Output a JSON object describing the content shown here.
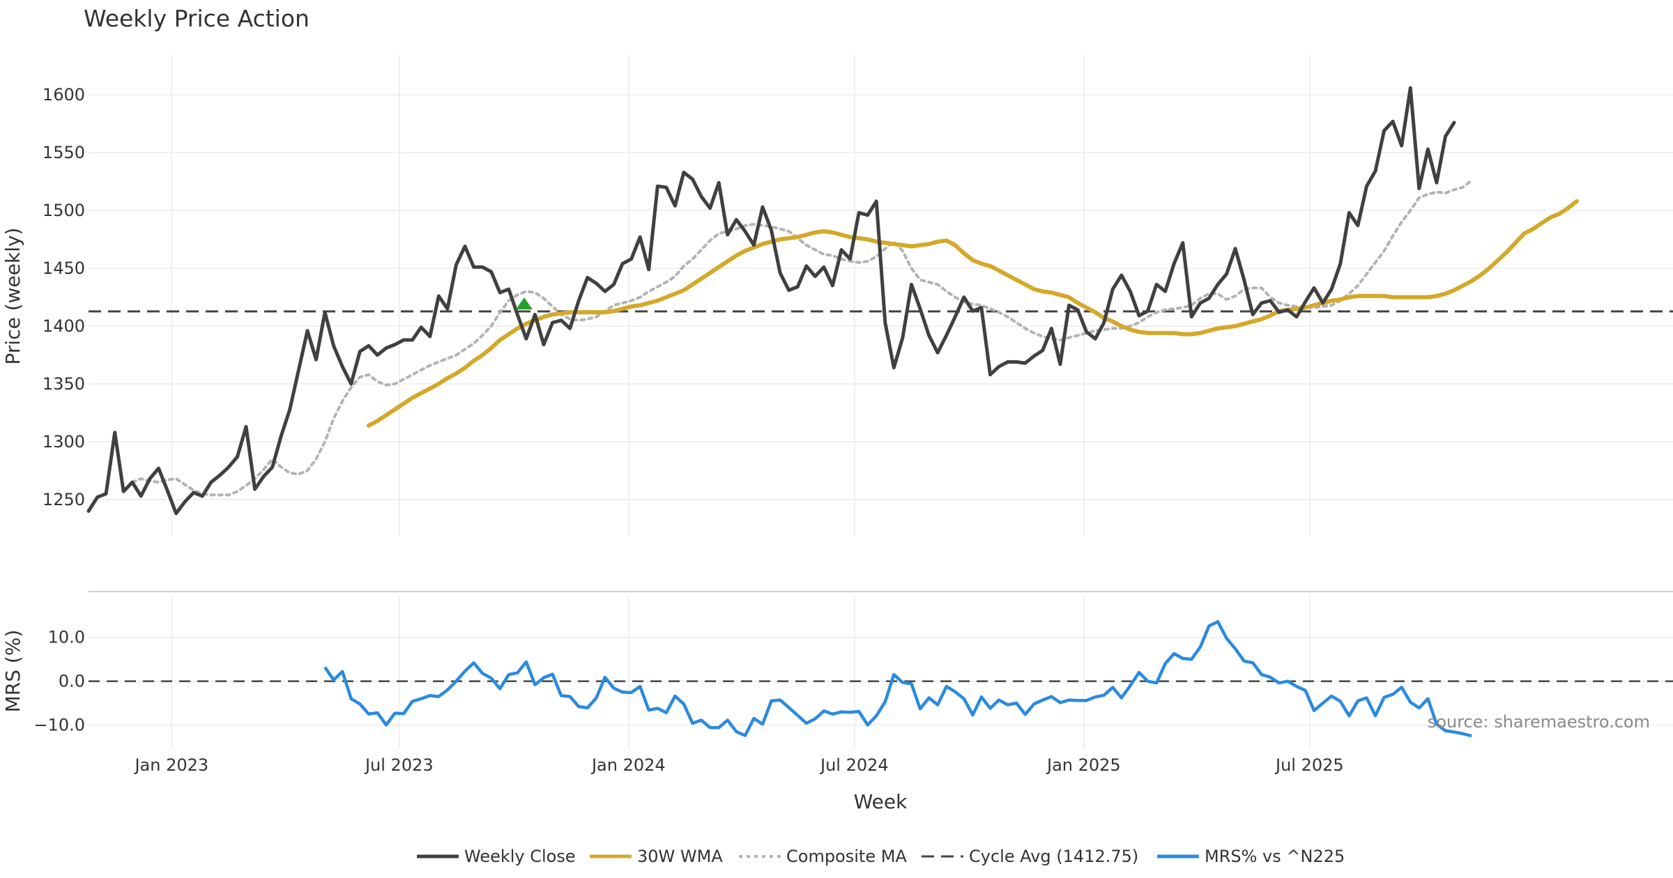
{
  "chart_data": [
    {
      "type": "line",
      "title": "Weekly Price Action",
      "xlabel": "Week",
      "ylabel": "Price (weekly)",
      "x_ticks": [
        "Jan 2023",
        "Jul 2023",
        "Jan 2024",
        "Jul 2024",
        "Jan 2025",
        "Jul 2025"
      ],
      "y_ticks": [
        1250,
        1300,
        1350,
        1400,
        1450,
        1500,
        1550,
        1600
      ],
      "ylim": [
        1218,
        1635
      ],
      "x_range_weeks": [
        0,
        181
      ],
      "grid": true,
      "series": [
        {
          "name": "Weekly Close",
          "color": "#404040",
          "style": "solid",
          "start_week": 0,
          "values": [
            1240,
            1252,
            1255,
            1308,
            1257,
            1265,
            1253,
            1268,
            1277,
            1258,
            1238,
            1248,
            1256,
            1253,
            1265,
            1271,
            1278,
            1287,
            1313,
            1259,
            1270,
            1278,
            1305,
            1328,
            1362,
            1396,
            1371,
            1412,
            1383,
            1365,
            1350,
            1378,
            1383,
            1375,
            1381,
            1384,
            1388,
            1388,
            1399,
            1391,
            1426,
            1415,
            1453,
            1469,
            1451,
            1451,
            1447,
            1429,
            1432,
            1410,
            1389,
            1410,
            1384,
            1403,
            1405,
            1398,
            1422,
            1442,
            1437,
            1430,
            1436,
            1454,
            1458,
            1477,
            1449,
            1521,
            1520,
            1504,
            1533,
            1527,
            1512,
            1502,
            1524,
            1479,
            1492,
            1482,
            1470,
            1503,
            1483,
            1446,
            1431,
            1434,
            1452,
            1443,
            1451,
            1435,
            1466,
            1458,
            1498,
            1496,
            1508,
            1403,
            1364,
            1390,
            1436,
            1415,
            1392,
            1377,
            1392,
            1408,
            1425,
            1413,
            1416,
            1358,
            1365,
            1369,
            1369,
            1368,
            1374,
            1379,
            1398,
            1367,
            1418,
            1414,
            1395,
            1389,
            1403,
            1432,
            1444,
            1430,
            1409,
            1413,
            1436,
            1430,
            1454,
            1472,
            1408,
            1420,
            1424,
            1436,
            1445,
            1467,
            1440,
            1410,
            1420,
            1422,
            1412,
            1414,
            1408,
            1421,
            1433,
            1420,
            1432,
            1454,
            1498,
            1487,
            1521,
            1534,
            1569,
            1577,
            1556,
            1606,
            1519,
            1553,
            1524,
            1564,
            1576
          ]
        },
        {
          "name": "30W WMA",
          "color": "#d4a92a",
          "style": "solid",
          "start_week": 32,
          "values": [
            1314,
            1318,
            1323,
            1328,
            1333,
            1338,
            1342,
            1346,
            1350,
            1355,
            1359,
            1364,
            1370,
            1375,
            1381,
            1388,
            1393,
            1398,
            1402,
            1405,
            1408,
            1410,
            1411,
            1412,
            1412,
            1412,
            1412,
            1412,
            1413,
            1415,
            1417,
            1418,
            1420,
            1422,
            1425,
            1428,
            1431,
            1436,
            1441,
            1446,
            1451,
            1456,
            1461,
            1465,
            1468,
            1471,
            1473,
            1475,
            1476,
            1477,
            1479,
            1481,
            1482,
            1481,
            1479,
            1477,
            1476,
            1475,
            1473,
            1472,
            1471,
            1470,
            1469,
            1470,
            1471,
            1473,
            1474,
            1470,
            1463,
            1457,
            1454,
            1452,
            1448,
            1444,
            1440,
            1436,
            1432,
            1430,
            1429,
            1427,
            1425,
            1420,
            1416,
            1412,
            1407,
            1404,
            1400,
            1397,
            1395,
            1394,
            1394,
            1394,
            1394,
            1393,
            1393,
            1394,
            1396,
            1398,
            1399,
            1400,
            1402,
            1404,
            1406,
            1409,
            1413,
            1414,
            1415,
            1416,
            1418,
            1420,
            1422,
            1423,
            1425,
            1426,
            1426,
            1426,
            1426,
            1425,
            1425,
            1425,
            1425,
            1425,
            1426,
            1428,
            1431,
            1435,
            1439,
            1444,
            1450,
            1457,
            1464,
            1472,
            1480,
            1484,
            1489,
            1494,
            1497,
            1502,
            1508
          ]
        },
        {
          "name": "Composite MA",
          "color": "#b3b3b3",
          "style": "dotted",
          "start_week": 5,
          "values": [
            1265,
            1268,
            1266,
            1265,
            1267,
            1268,
            1263,
            1258,
            1255,
            1254,
            1254,
            1254,
            1257,
            1262,
            1268,
            1276,
            1285,
            1278,
            1273,
            1272,
            1275,
            1285,
            1300,
            1320,
            1335,
            1347,
            1356,
            1358,
            1352,
            1349,
            1350,
            1354,
            1358,
            1362,
            1366,
            1369,
            1372,
            1375,
            1380,
            1385,
            1392,
            1400,
            1412,
            1422,
            1427,
            1430,
            1429,
            1424,
            1417,
            1410,
            1406,
            1405,
            1406,
            1408,
            1413,
            1418,
            1420,
            1422,
            1425,
            1430,
            1434,
            1438,
            1443,
            1452,
            1458,
            1466,
            1474,
            1480,
            1482,
            1484,
            1487,
            1488,
            1487,
            1486,
            1484,
            1482,
            1476,
            1470,
            1466,
            1462,
            1461,
            1458,
            1456,
            1455,
            1456,
            1460,
            1467,
            1473,
            1465,
            1450,
            1440,
            1438,
            1436,
            1430,
            1425,
            1421,
            1419,
            1418,
            1415,
            1412,
            1408,
            1403,
            1398,
            1394,
            1391,
            1389,
            1388,
            1390,
            1392,
            1394,
            1396,
            1397,
            1398,
            1398,
            1400,
            1403,
            1408,
            1412,
            1414,
            1415,
            1416,
            1418,
            1424,
            1428,
            1428,
            1423,
            1426,
            1432,
            1433,
            1433,
            1425,
            1420,
            1418,
            1417,
            1416,
            1416,
            1417,
            1418,
            1422,
            1428,
            1435,
            1445,
            1455,
            1465,
            1478,
            1490,
            1500,
            1511,
            1514,
            1516,
            1515,
            1518,
            1520,
            1526
          ]
        },
        {
          "name": "Cycle Avg (1412.75)",
          "color": "#444444",
          "style": "dashed",
          "constant": 1412.75
        }
      ]
    },
    {
      "type": "line",
      "title": "",
      "xlabel": "Week",
      "ylabel": "MRS (%)",
      "y_ticks": [
        "10.0",
        "0.0",
        "−10.0"
      ],
      "ylim": [
        -15.5,
        19.5
      ],
      "x_range_weeks": [
        0,
        181
      ],
      "grid": true,
      "zero_line": true,
      "series": [
        {
          "name": "MRS% vs ^N225",
          "color": "#2a8ae0",
          "style": "solid",
          "start_week": 27,
          "values": [
            3.2,
            0.3,
            2.2,
            -4.0,
            -5.2,
            -7.5,
            -7.2,
            -10.0,
            -7.3,
            -7.4,
            -4.6,
            -4.0,
            -3.3,
            -3.5,
            -2.0,
            0.0,
            2.3,
            4.2,
            1.8,
            0.7,
            -1.7,
            1.5,
            1.9,
            4.4,
            -0.8,
            0.8,
            1.6,
            -3.3,
            -3.5,
            -5.8,
            -6.1,
            -3.8,
            0.9,
            -1.6,
            -2.5,
            -2.6,
            -1.2,
            -6.6,
            -6.2,
            -7.2,
            -3.4,
            -5.2,
            -9.6,
            -8.9,
            -10.6,
            -10.6,
            -8.9,
            -11.5,
            -12.4,
            -8.5,
            -9.8,
            -4.5,
            -4.3,
            -6.0,
            -7.8,
            -9.6,
            -8.6,
            -6.8,
            -7.5,
            -7.0,
            -7.1,
            -6.9,
            -10.0,
            -7.9,
            -4.7,
            1.5,
            -0.3,
            -0.6,
            -6.3,
            -3.8,
            -5.4,
            -1.2,
            -2.4,
            -4.0,
            -7.7,
            -3.6,
            -6.2,
            -4.3,
            -5.4,
            -5.0,
            -7.6,
            -5.2,
            -4.3,
            -3.5,
            -4.9,
            -4.3,
            -4.4,
            -4.4,
            -3.6,
            -3.2,
            -1.4,
            -3.8,
            -1.0,
            2.0,
            0.0,
            -0.4,
            4.0,
            6.3,
            5.2,
            5.0,
            7.8,
            12.6,
            13.6,
            9.8,
            7.4,
            4.6,
            4.2,
            1.5,
            0.9,
            -0.4,
            0.0,
            -1.2,
            -2.1,
            -6.7,
            -5.0,
            -3.4,
            -4.6,
            -7.9,
            -4.5,
            -3.8,
            -7.9,
            -3.7,
            -3.0,
            -1.4,
            -4.8,
            -6.1,
            -4.0,
            -9.8,
            -11.3,
            -11.6,
            -12.0,
            -12.5
          ]
        }
      ]
    }
  ],
  "source": "source: sharemaestro.com"
}
